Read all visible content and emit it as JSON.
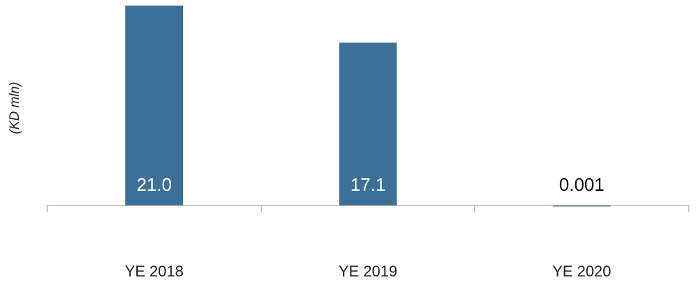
{
  "chart_data": {
    "type": "bar",
    "y_label": "(KD mln)",
    "categories": [
      "YE 2018",
      "YE 2019",
      "YE 2020"
    ],
    "values": [
      21.0,
      17.1,
      0.001
    ],
    "value_labels": [
      "21.0",
      "17.1",
      "0.001"
    ],
    "color": "#3d7099",
    "ylim": [
      0,
      21
    ]
  }
}
